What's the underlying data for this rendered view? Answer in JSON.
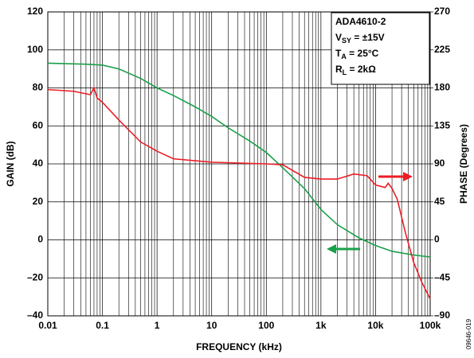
{
  "chart_data": {
    "type": "line",
    "xlabel": "FREQUENCY (kHz)",
    "ylabel": "GAIN (dB)",
    "y2label": "PHASE (Degrees)",
    "figure_id": "09646-019",
    "conditions": [
      {
        "text": "ADA4610-2"
      },
      {
        "symbol": "V",
        "subscript": "SY",
        "text": " = ±15V"
      },
      {
        "symbol": "T",
        "subscript": "A",
        "text": " = 25°C"
      },
      {
        "symbol": "R",
        "subscript": "L",
        "text": " = 2kΩ"
      }
    ],
    "xscale": "log",
    "minor_grid": true,
    "grid": true,
    "xlim": [
      0.01,
      100000
    ],
    "xticks": [
      0.01,
      0.1,
      1,
      10,
      100,
      {
        "value": 1000,
        "label": "1k"
      },
      {
        "value": 10000,
        "label": "10k"
      },
      {
        "value": 100000,
        "label": "100k"
      }
    ],
    "ylim": [
      -40,
      120
    ],
    "yticks": [
      {
        "value": -40,
        "label": "–40"
      },
      {
        "value": -20,
        "label": "–20"
      },
      0,
      20,
      40,
      60,
      80,
      100,
      120
    ],
    "y2lim": [
      -90,
      270
    ],
    "y2ticks": [
      {
        "value": -90,
        "label": "–90"
      },
      {
        "value": -45,
        "label": "–45"
      },
      0,
      45,
      90,
      135,
      180,
      225,
      270
    ],
    "series": [
      {
        "name": "GAIN",
        "color": "#1aa04a",
        "axis": "y",
        "x": [
          0.01,
          0.05,
          0.1,
          0.2,
          0.5,
          1,
          2,
          5,
          10,
          20,
          50,
          100,
          200,
          500,
          1000,
          2000,
          5000,
          10000,
          20000,
          50000,
          100000
        ],
        "values": [
          93,
          92.5,
          92,
          90,
          85,
          80,
          76,
          70,
          65,
          59,
          52,
          46,
          38,
          27,
          16,
          8,
          1,
          -3,
          -6,
          -8,
          -9
        ]
      },
      {
        "name": "PHASE",
        "color": "#ee1c24",
        "axis": "y2",
        "x": [
          0.01,
          0.03,
          0.06,
          0.07,
          0.08,
          0.1,
          0.2,
          0.5,
          1,
          2,
          10,
          100,
          200,
          500,
          1000,
          2000,
          4000,
          7000,
          10000,
          15000,
          17000,
          20000,
          25000,
          35000,
          50000,
          70000,
          100000
        ],
        "values": [
          178,
          176,
          172,
          180,
          168,
          163,
          142,
          116,
          105,
          96,
          92,
          90,
          89,
          74,
          72,
          72,
          78,
          76,
          65,
          62,
          67,
          61,
          48,
          9,
          -27,
          -50,
          -70
        ]
      }
    ]
  }
}
